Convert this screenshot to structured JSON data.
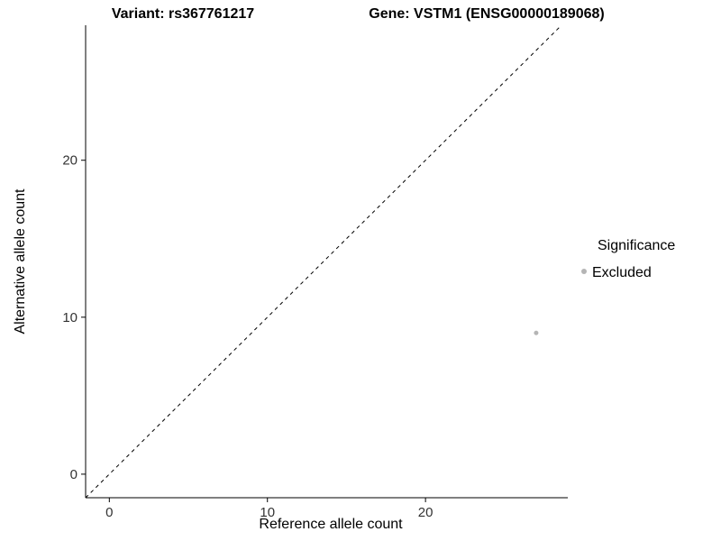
{
  "figure": {
    "background": "#ffffff"
  },
  "chart_data": {
    "type": "scatter",
    "title_left": "Variant: rs367761217",
    "title_right": "Gene: VSTM1 (ENSG00000189068)",
    "xlabel": "Reference allele count",
    "ylabel": "Alternative allele count",
    "xlim": [
      -1.5,
      29
    ],
    "ylim": [
      -1.5,
      28.6
    ],
    "x_ticks": [
      0,
      10,
      20
    ],
    "y_ticks": [
      0,
      10,
      20
    ],
    "grid": false,
    "identity_line": {
      "style": "dashed",
      "color": "#000000",
      "from": [
        -1.5,
        -1.5
      ],
      "to": [
        28.6,
        28.6
      ]
    },
    "series": [
      {
        "name": "Excluded",
        "color": "#b5b5b5",
        "point_radius": 2.5,
        "points": [
          {
            "x": 27,
            "y": 9
          }
        ]
      }
    ],
    "legend": {
      "position": "right",
      "title": "Significance",
      "entries": [
        {
          "label": "Excluded",
          "color": "#b5b5b5"
        }
      ]
    }
  }
}
